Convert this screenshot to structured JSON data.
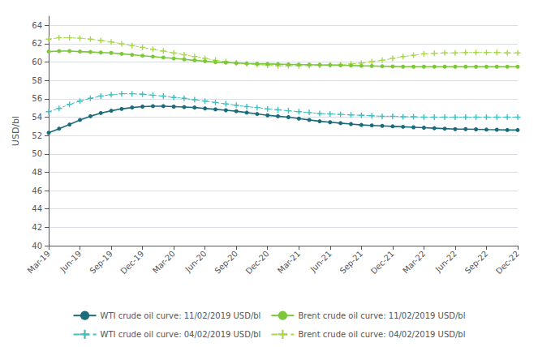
{
  "chart_data": {
    "type": "line",
    "ylabel": "USD/bl",
    "categories": [
      "Mar-19",
      null,
      null,
      "Jun-19",
      null,
      null,
      "Sep-19",
      null,
      null,
      "Dec-19",
      null,
      null,
      "Mar-20",
      null,
      null,
      "Jun-20",
      null,
      null,
      "Sep-20",
      null,
      null,
      "Dec-20",
      null,
      null,
      "Mar-21",
      null,
      null,
      "Jun-21",
      null,
      null,
      "Sep-21",
      null,
      null,
      "Dec-21",
      null,
      null,
      "Mar-22",
      null,
      null,
      "Jun-22",
      null,
      null,
      "Sep-22",
      null,
      null,
      "Dec-22"
    ],
    "series": [
      {
        "name": "WTI crude oil curve: 11/02/2019 USD/bl",
        "color": "#1b6b7b",
        "line_style": "solid",
        "marker": "circle",
        "values": [
          52.3,
          52.75,
          53.2,
          53.7,
          54.1,
          54.45,
          54.7,
          54.9,
          55.05,
          55.15,
          55.2,
          55.2,
          55.15,
          55.1,
          55.05,
          54.95,
          54.85,
          54.75,
          54.65,
          54.5,
          54.35,
          54.2,
          54.1,
          54.0,
          53.85,
          53.7,
          53.55,
          53.45,
          53.35,
          53.25,
          53.15,
          53.1,
          53.05,
          53.0,
          52.95,
          52.9,
          52.85,
          52.8,
          52.75,
          52.7,
          52.7,
          52.68,
          52.65,
          52.63,
          52.6,
          52.6
        ]
      },
      {
        "name": "Brent crude oil curve: 11/02/2019 USD/bl",
        "color": "#7cc83a",
        "line_style": "solid",
        "marker": "circle",
        "values": [
          61.15,
          61.2,
          61.2,
          61.15,
          61.1,
          61.05,
          61.0,
          60.9,
          60.8,
          60.7,
          60.6,
          60.5,
          60.4,
          60.3,
          60.2,
          60.1,
          60.0,
          59.95,
          59.9,
          59.85,
          59.82,
          59.8,
          59.78,
          59.75,
          59.73,
          59.72,
          59.7,
          59.68,
          59.65,
          59.63,
          59.6,
          59.58,
          59.55,
          59.53,
          59.5,
          59.5,
          59.5,
          59.5,
          59.5,
          59.5,
          59.5,
          59.5,
          59.5,
          59.5,
          59.5,
          59.5
        ]
      },
      {
        "name": "WTI crude oil curve: 04/02/2019 USD/bl",
        "color": "#40bfbf",
        "line_style": "dashed",
        "marker": "plus",
        "values": [
          54.6,
          54.95,
          55.4,
          55.75,
          56.05,
          56.3,
          56.45,
          56.55,
          56.55,
          56.5,
          56.4,
          56.3,
          56.15,
          56.05,
          55.9,
          55.75,
          55.6,
          55.45,
          55.3,
          55.15,
          55.05,
          54.9,
          54.8,
          54.7,
          54.6,
          54.5,
          54.4,
          54.35,
          54.3,
          54.25,
          54.2,
          54.15,
          54.1,
          54.1,
          54.05,
          54.05,
          54.0,
          54.0,
          54.0,
          54.0,
          54.0,
          54.0,
          54.0,
          54.0,
          54.0,
          54.0
        ]
      },
      {
        "name": "Brent crude oil curve: 04/02/2019 USD/bl",
        "color": "#a8d84a",
        "line_style": "dashed",
        "marker": "plus",
        "values": [
          62.5,
          62.65,
          62.65,
          62.6,
          62.5,
          62.35,
          62.2,
          62.0,
          61.8,
          61.6,
          61.4,
          61.2,
          61.0,
          60.8,
          60.6,
          60.4,
          60.2,
          60.05,
          59.9,
          59.8,
          59.72,
          59.65,
          59.6,
          59.6,
          59.6,
          59.62,
          59.65,
          59.7,
          59.75,
          59.8,
          59.9,
          60.05,
          60.2,
          60.4,
          60.6,
          60.75,
          60.9,
          60.95,
          61.0,
          61.0,
          61.05,
          61.05,
          61.05,
          61.05,
          61.0,
          61.0
        ]
      }
    ],
    "ylim": [
      40,
      65
    ],
    "yticks": [
      40,
      42,
      44,
      46,
      48,
      50,
      52,
      54,
      56,
      58,
      60,
      62,
      64
    ],
    "grid": true,
    "legend": "bottom"
  }
}
